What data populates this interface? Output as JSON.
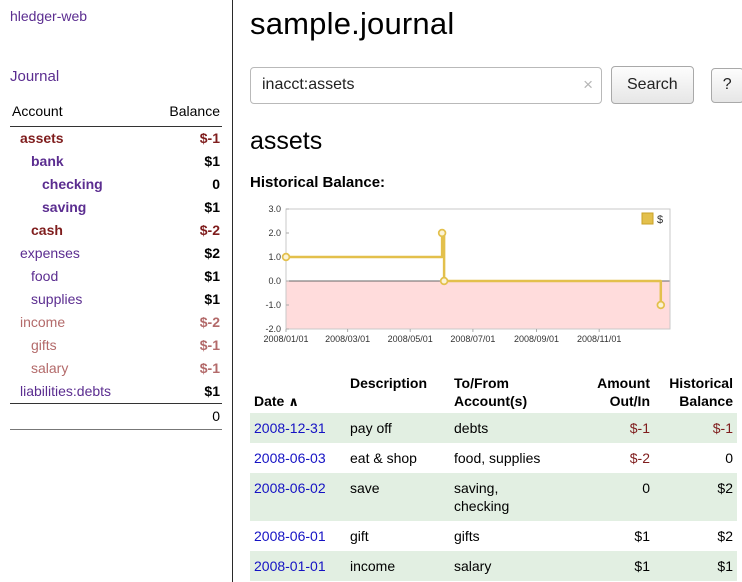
{
  "colors": {
    "link-purple": "#5b2d90",
    "link-blue": "#1512c4",
    "neg-dark": "#7f1d1d",
    "neg-light": "#b36a6a",
    "row-green": "#e2efe2",
    "chart-line": "#e3c04c",
    "chart-fill-neg": "#ffdcdc"
  },
  "sidebar": {
    "app_title": "hledger-web",
    "journal_link": "Journal",
    "accounts": {
      "col_account": "Account",
      "col_balance": "Balance",
      "rows": [
        {
          "name": "assets",
          "balance": "$-1"
        },
        {
          "name": "bank",
          "balance": "$1"
        },
        {
          "name": "checking",
          "balance": "0"
        },
        {
          "name": "saving",
          "balance": "$1"
        },
        {
          "name": "cash",
          "balance": "$-2"
        },
        {
          "name": "expenses",
          "balance": "$2"
        },
        {
          "name": "food",
          "balance": "$1"
        },
        {
          "name": "supplies",
          "balance": "$1"
        },
        {
          "name": "income",
          "balance": "$-2"
        },
        {
          "name": "gifts",
          "balance": "$-1"
        },
        {
          "name": "salary",
          "balance": "$-1"
        },
        {
          "name": "liabilities:debts",
          "balance": "$1"
        }
      ],
      "total": "0"
    }
  },
  "header": {
    "title": "sample.journal"
  },
  "search": {
    "value": "inacct:assets",
    "clear_icon": "×",
    "button_label": "Search",
    "help_label": "?"
  },
  "assets_section": {
    "title": "assets",
    "chart_label": "Historical Balance:"
  },
  "chart_data": {
    "type": "line",
    "step": true,
    "title": "Historical Balance",
    "xlabel": "",
    "ylabel": "",
    "ylim": [
      -2.0,
      3.0
    ],
    "yticks": [
      3.0,
      2.0,
      1.0,
      0.0,
      -1.0,
      -2.0
    ],
    "xticks": [
      {
        "date": "2008-01-01",
        "label": "2008/01/01"
      },
      {
        "date": "2008-03-01",
        "label": "2008/03/01"
      },
      {
        "date": "2008-05-01",
        "label": "2008/05/01"
      },
      {
        "date": "2008-07-01",
        "label": "2008/07/01"
      },
      {
        "date": "2008-09-01",
        "label": "2008/09/01"
      },
      {
        "date": "2008-11-01",
        "label": "2008/11/01"
      }
    ],
    "legend_position": "top-right",
    "negative_region_shaded": true,
    "series": [
      {
        "name": "$",
        "points": [
          {
            "x": "2008-01-01",
            "y": 1
          },
          {
            "x": "2008-06-01",
            "y": 2
          },
          {
            "x": "2008-06-03",
            "y": 0
          },
          {
            "x": "2008-12-31",
            "y": -1
          }
        ]
      }
    ]
  },
  "register": {
    "headers": {
      "date": "Date",
      "sort_icon": "∧",
      "description": "Description",
      "accounts": "To/From\nAccount(s)",
      "amount": "Amount\nOut/In",
      "balance": "Historical\nBalance"
    },
    "rows": [
      {
        "date": "2008-12-31",
        "description": "pay off",
        "accounts": "debts",
        "amount": "$-1",
        "balance": "$-1"
      },
      {
        "date": "2008-06-03",
        "description": "eat & shop",
        "accounts": "food, supplies",
        "amount": "$-2",
        "balance": "0"
      },
      {
        "date": "2008-06-02",
        "description": "save",
        "accounts": "saving,\nchecking",
        "amount": "0",
        "balance": "$2"
      },
      {
        "date": "2008-06-01",
        "description": "gift",
        "accounts": "gifts",
        "amount": "$1",
        "balance": "$2"
      },
      {
        "date": "2008-01-01",
        "description": "income",
        "accounts": "salary",
        "amount": "$1",
        "balance": "$1"
      }
    ]
  }
}
